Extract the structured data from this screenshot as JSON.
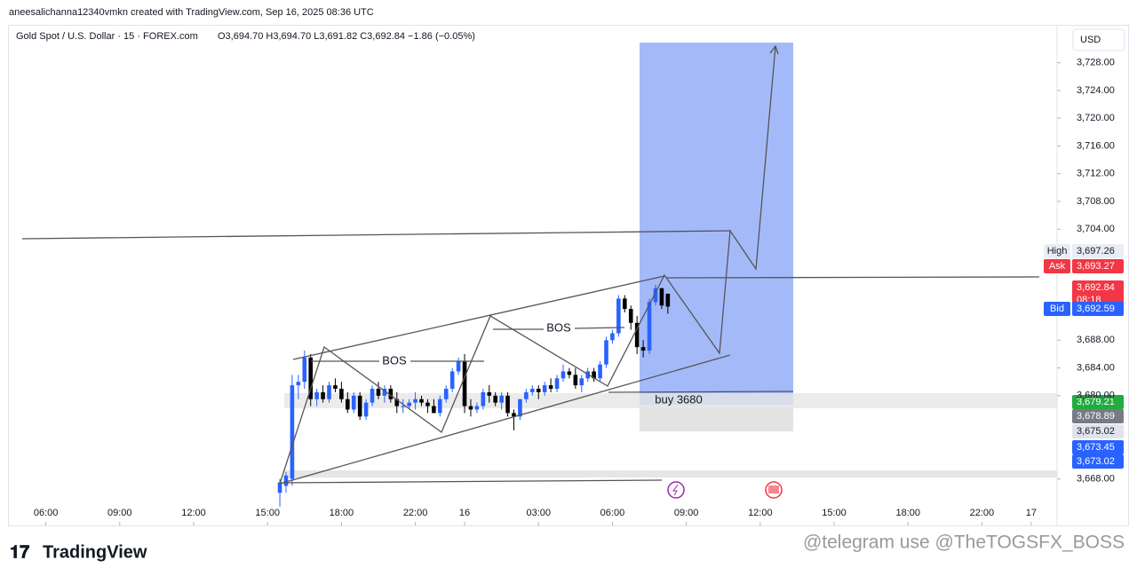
{
  "header": {
    "credit": "aneesalichanna12340vmkn created with TradingView.com, Sep 16, 2025 08:36 UTC",
    "symbol": "Gold Spot / U.S. Dollar · 15 · FOREX.com",
    "ohlc": "O3,694.70 H3,694.70 L3,691.82 C3,692.84 −1.86 (−0.05%)",
    "currency": "USD"
  },
  "annotations": {
    "bos_1": "BOS",
    "bos_2": "BOS",
    "buy": "buy 3680"
  },
  "footer": {
    "brand": "TradingView",
    "watermark": "@telegram use @TheTOGSFX_BOSS"
  },
  "price_tags": [
    {
      "name": "High",
      "label": "3,697.26",
      "color": "#e9edf4",
      "text_color": "#131722"
    },
    {
      "name": "Ask",
      "label": "3,693.27",
      "color": "#f23645",
      "text_color": "#ffffff"
    },
    {
      "label": "3,692.84",
      "sub": "08:18",
      "color": "#f23645",
      "text_color": "#ffffff"
    },
    {
      "name": "Bid",
      "label": "3,692.59",
      "color": "#2962ff",
      "text_color": "#ffffff"
    },
    {
      "label": "3,679.21",
      "color": "#22ab3f",
      "text_color": "#ffffff"
    },
    {
      "label": "3,678.89",
      "color": "#787b86",
      "text_color": "#ffffff"
    },
    {
      "label": "3,675.02",
      "color": "#e0e3eb",
      "text_color": "#131722"
    },
    {
      "label": "3,673.45",
      "color": "#2962ff",
      "text_color": "#ffffff"
    },
    {
      "label": "3,673.02",
      "color": "#2962ff",
      "text_color": "#ffffff"
    }
  ],
  "chart_data": {
    "type": "candlestick",
    "up_color": "#2962ff",
    "down_color": "#000000",
    "xlim": [
      -6,
      164.2
    ],
    "ylim": [
      3661.3,
      3733.2
    ],
    "xticks": [
      {
        "value": 0,
        "label": "06:00"
      },
      {
        "value": 12,
        "label": "09:00"
      },
      {
        "value": 24,
        "label": "12:00"
      },
      {
        "value": 36,
        "label": "15:00"
      },
      {
        "value": 48,
        "label": "18:00"
      },
      {
        "value": 60,
        "label": "22:00"
      },
      {
        "value": 68,
        "label": "16"
      },
      {
        "value": 80,
        "label": "03:00"
      },
      {
        "value": 92,
        "label": "06:00"
      },
      {
        "value": 104,
        "label": "09:00"
      },
      {
        "value": 116,
        "label": "12:00"
      },
      {
        "value": 128,
        "label": "15:00"
      },
      {
        "value": 140,
        "label": "18:00"
      },
      {
        "value": 152,
        "label": "22:00"
      },
      {
        "value": 160,
        "label": "17"
      }
    ],
    "yticks": [
      {
        "value": 3668,
        "label": "3,668.00"
      },
      {
        "value": 3680,
        "label": "3,680.00"
      },
      {
        "value": 3684,
        "label": "3,684.00"
      },
      {
        "value": 3688,
        "label": "3,688.00"
      },
      {
        "value": 3704,
        "label": "3,704.00"
      },
      {
        "value": 3708,
        "label": "3,708.00"
      },
      {
        "value": 3712,
        "label": "3,712.00"
      },
      {
        "value": 3716,
        "label": "3,716.00"
      },
      {
        "value": 3720,
        "label": "3,720.00"
      },
      {
        "value": 3724,
        "label": "3,724.00"
      },
      {
        "value": 3728,
        "label": "3,728.00"
      }
    ],
    "candles": [
      [
        38,
        3666,
        3668,
        3664,
        3667.5
      ],
      [
        39,
        3667,
        3669,
        3666,
        3668.5
      ],
      [
        40,
        3668,
        3683,
        3667,
        3681.5
      ],
      [
        41,
        3681.5,
        3683,
        3679.5,
        3682
      ],
      [
        42,
        3682,
        3686.5,
        3681,
        3685.5
      ],
      [
        43,
        3685.5,
        3686,
        3678.5,
        3679.5
      ],
      [
        44,
        3679.5,
        3681,
        3678.5,
        3680.5
      ],
      [
        45,
        3680.5,
        3681.5,
        3679,
        3679.5
      ],
      [
        46,
        3679.5,
        3682,
        3679,
        3681.5
      ],
      [
        47,
        3681.5,
        3682.5,
        3680.5,
        3681
      ],
      [
        48,
        3681,
        3682,
        3679,
        3679.5
      ],
      [
        49,
        3679.5,
        3680.5,
        3677.5,
        3678
      ],
      [
        50,
        3678,
        3680.5,
        3677.5,
        3680
      ],
      [
        51,
        3680,
        3680.5,
        3676.5,
        3677
      ],
      [
        52,
        3677,
        3679.5,
        3676.5,
        3679
      ],
      [
        53,
        3679,
        3681.5,
        3678.5,
        3681
      ],
      [
        54,
        3681,
        3682,
        3679.5,
        3680
      ],
      [
        55,
        3680,
        3681.5,
        3679,
        3681
      ],
      [
        56,
        3681,
        3681.5,
        3679,
        3679.5
      ],
      [
        57,
        3679.5,
        3680.5,
        3677.5,
        3678.5
      ],
      [
        58,
        3678.5,
        3679.5,
        3677.5,
        3678.5
      ],
      [
        59,
        3678.5,
        3679.5,
        3678,
        3679
      ],
      [
        60,
        3679,
        3680.5,
        3678,
        3679.5
      ],
      [
        61,
        3679.5,
        3680,
        3678.5,
        3679
      ],
      [
        62,
        3679,
        3679.5,
        3677.5,
        3678.5
      ],
      [
        63,
        3678.5,
        3679.5,
        3677.5,
        3677.5
      ],
      [
        64,
        3677.5,
        3680,
        3677,
        3679.5
      ],
      [
        65,
        3679.5,
        3681.5,
        3679,
        3681
      ],
      [
        66,
        3681,
        3684,
        3680.5,
        3683.5
      ],
      [
        67,
        3683.5,
        3685.5,
        3683,
        3685
      ],
      [
        68,
        3685,
        3686,
        3677.5,
        3678.5
      ],
      [
        69,
        3678.5,
        3679.5,
        3677,
        3678
      ],
      [
        70,
        3678,
        3679,
        3677.5,
        3678.5
      ],
      [
        71,
        3678.5,
        3681,
        3678,
        3680.5
      ],
      [
        72,
        3680.5,
        3681.5,
        3679,
        3680
      ],
      [
        73,
        3680,
        3680.5,
        3678.5,
        3679
      ],
      [
        74,
        3679,
        3680.5,
        3678,
        3680
      ],
      [
        75,
        3680,
        3680.5,
        3677,
        3677.5
      ],
      [
        76,
        3677.5,
        3678,
        3675,
        3677
      ],
      [
        77,
        3677,
        3679.5,
        3676.5,
        3679.5
      ],
      [
        78,
        3679.5,
        3681,
        3679,
        3680.5
      ],
      [
        79,
        3680.5,
        3681.5,
        3680,
        3681
      ],
      [
        80,
        3681,
        3681.5,
        3679.5,
        3680.5
      ],
      [
        81,
        3680.5,
        3682,
        3680,
        3681.5
      ],
      [
        82,
        3681.5,
        3682.5,
        3680.5,
        3681
      ],
      [
        83,
        3681,
        3683,
        3680.5,
        3682.5
      ],
      [
        84,
        3682.5,
        3684.5,
        3682,
        3683.5
      ],
      [
        85,
        3683.5,
        3684,
        3682.5,
        3683
      ],
      [
        86,
        3683,
        3684,
        3681,
        3681.5
      ],
      [
        87,
        3681.5,
        3683,
        3680.5,
        3682.5
      ],
      [
        88,
        3682.5,
        3684,
        3682,
        3683.5
      ],
      [
        89,
        3683.5,
        3684,
        3682,
        3682.5
      ],
      [
        90,
        3682.5,
        3685,
        3682,
        3684.5
      ],
      [
        91,
        3684.5,
        3688.5,
        3684,
        3688
      ],
      [
        92,
        3688,
        3689.5,
        3687.5,
        3689
      ],
      [
        93,
        3689,
        3694.5,
        3688.5,
        3694
      ],
      [
        94,
        3694,
        3694.5,
        3692,
        3692.5
      ],
      [
        95,
        3692.5,
        3693,
        3689.5,
        3690.5
      ],
      [
        96,
        3690.5,
        3691.5,
        3686,
        3687
      ],
      [
        97,
        3687,
        3688,
        3685.5,
        3686.5
      ],
      [
        98,
        3686.5,
        3694,
        3686,
        3693.5
      ],
      [
        99,
        3693.5,
        3696,
        3693,
        3695.5
      ],
      [
        100,
        3695.5,
        3695.5,
        3692.5,
        3693
      ],
      [
        101,
        3694.7,
        3694.7,
        3691.82,
        3692.84
      ]
    ]
  }
}
